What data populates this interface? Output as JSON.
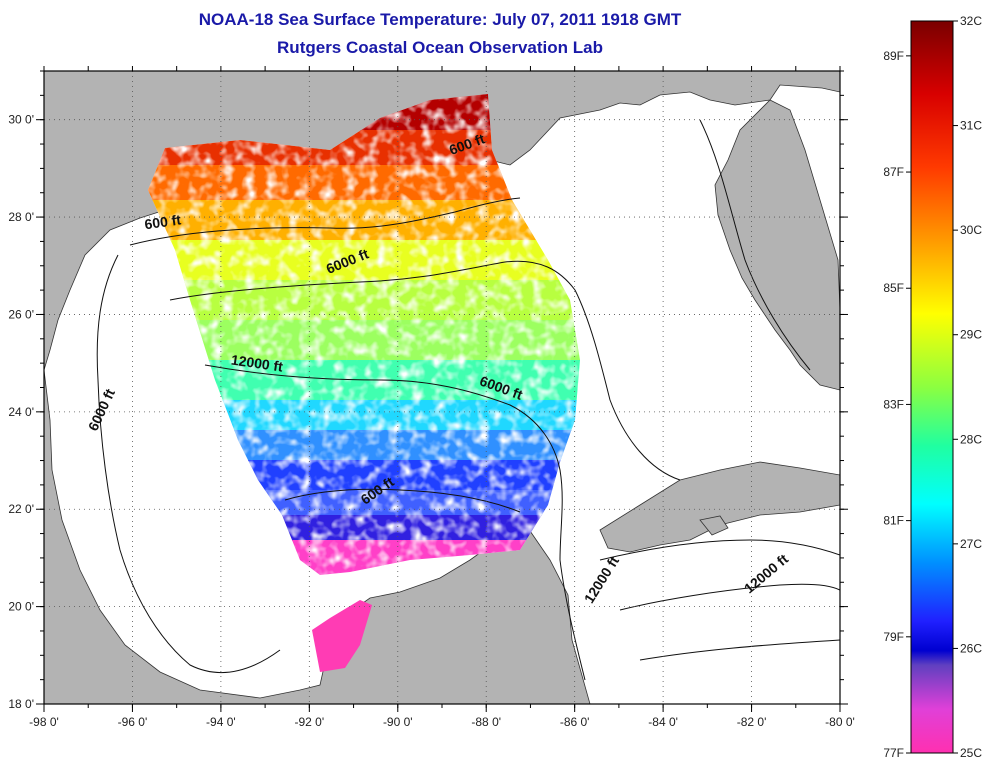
{
  "header": {
    "title": "NOAA-18 Sea Surface Temperature:  July 07, 2011 1918 GMT",
    "subtitle": "Rutgers Coastal Ocean Observation Lab"
  },
  "map": {
    "lon_range": [
      -98,
      -80
    ],
    "lat_range": [
      18,
      31
    ],
    "lon_ticks": [
      "-98 0'",
      "-96 0'",
      "-94 0'",
      "-92 0'",
      "-90 0'",
      "-88 0'",
      "-86 0'",
      "-84 0'",
      "-82 0'",
      "-80 0'"
    ],
    "lat_ticks": [
      "18 0'",
      "20 0'",
      "22 0'",
      "24 0'",
      "26 0'",
      "28 0'",
      "30 0'"
    ],
    "contour_labels": [
      {
        "text": "600 ft",
        "lon": -95.3,
        "lat": 27.8,
        "angle": -8
      },
      {
        "text": "600 ft",
        "lon": -88.4,
        "lat": 29.4,
        "angle": -20
      },
      {
        "text": "600 ft",
        "lon": -90.4,
        "lat": 22.3,
        "angle": -35
      },
      {
        "text": "6000 ft",
        "lon": -91.1,
        "lat": 27.0,
        "angle": -22
      },
      {
        "text": "6000 ft",
        "lon": -87.7,
        "lat": 24.4,
        "angle": 20
      },
      {
        "text": "6000 ft",
        "lon": -96.6,
        "lat": 24.0,
        "angle": -65
      },
      {
        "text": "12000 ft",
        "lon": -93.2,
        "lat": 24.9,
        "angle": 8
      },
      {
        "text": "12000 ft",
        "lon": -85.3,
        "lat": 20.5,
        "angle": -58
      },
      {
        "text": "12000 ft",
        "lon": -81.6,
        "lat": 20.6,
        "angle": -40
      }
    ],
    "colors": {
      "land": "#b3b3b3",
      "ocean": "#ffffff",
      "contour": "#111111"
    }
  },
  "colorbar": {
    "celsius_labels": [
      "32C",
      "31C",
      "30C",
      "29C",
      "28C",
      "27C",
      "26C",
      "25C"
    ],
    "fahrenheit_labels": [
      "89F",
      "87F",
      "85F",
      "83F",
      "81F",
      "79F",
      "77F"
    ],
    "celsius_range": [
      25,
      32
    ],
    "fahrenheit_range": [
      77,
      89.6
    ]
  }
}
